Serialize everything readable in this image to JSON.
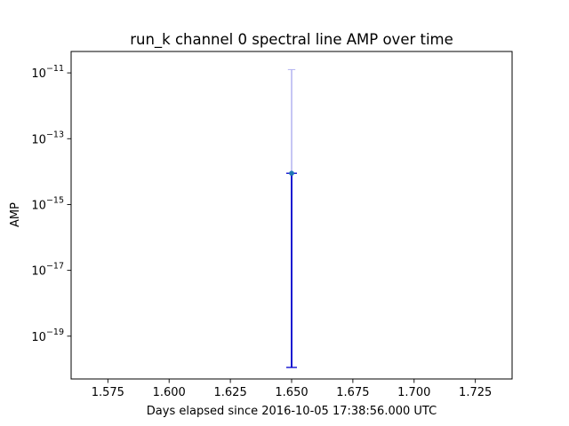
{
  "chart_data": {
    "type": "scatter",
    "title": "run_k channel 0 spectral line AMP over time",
    "xlabel": "Days elapsed since 2016-10-05 17:38:56.000 UTC",
    "ylabel": "AMP",
    "yscale": "log",
    "xlim": [
      1.56,
      1.74
    ],
    "ylim_log10": [
      -20.3,
      -10.35
    ],
    "x_ticks": [
      1.575,
      1.6,
      1.625,
      1.65,
      1.675,
      1.7,
      1.725
    ],
    "x_tick_labels": [
      "1.575",
      "1.600",
      "1.625",
      "1.650",
      "1.675",
      "1.700",
      "1.725"
    ],
    "y_ticks": [
      {
        "base": "10",
        "exp": "−11",
        "log10": -11
      },
      {
        "base": "10",
        "exp": "−13",
        "log10": -13
      },
      {
        "base": "10",
        "exp": "−15",
        "log10": -15
      },
      {
        "base": "10",
        "exp": "−17",
        "log10": -17
      },
      {
        "base": "10",
        "exp": "−19",
        "log10": -19
      }
    ],
    "points": [
      {
        "x": 1.65,
        "y_log10": -14.05,
        "err_low_log10": -19.95,
        "err_high_log10": -10.9,
        "err_inner_high_log10": -14.05
      }
    ],
    "grid": false,
    "legend": "none",
    "colors": {
      "point": "#1f77b4",
      "errorbar": "#0000cc",
      "errorbar_upper": "#b3b3f0",
      "axes": "#000000"
    }
  }
}
